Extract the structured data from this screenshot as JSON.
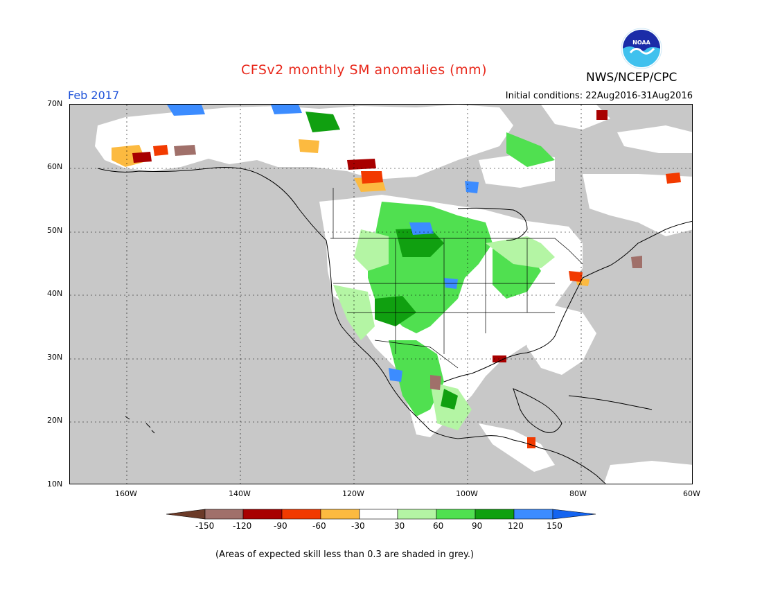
{
  "header": {
    "title": "CFSv2 monthly SM anomalies (mm)",
    "org": "NWS/NCEP/CPC",
    "month": "Feb 2017",
    "initial_conditions": "Initial conditions: 22Aug2016-31Aug2016",
    "logo_text": "NOAA"
  },
  "map": {
    "lat_labels": [
      "70N",
      "60N",
      "50N",
      "40N",
      "30N",
      "20N",
      "10N"
    ],
    "lon_labels": [
      "160W",
      "140W",
      "120W",
      "100W",
      "80W",
      "60W"
    ],
    "colors": {
      "background_grey": "#c8c8c8",
      "no_anomaly": "#ffffff"
    }
  },
  "legend": {
    "labels": [
      "-150",
      "-120",
      "-90",
      "-60",
      "-30",
      "30",
      "60",
      "90",
      "120",
      "150"
    ],
    "colors": [
      "#6b3a28",
      "#a0706a",
      "#a80000",
      "#f23a00",
      "#fcba40",
      "#ffffff",
      "#b4f5a4",
      "#50e050",
      "#10a010",
      "#3c8cff",
      "#1464f0"
    ]
  },
  "note": "(Areas of expected skill less than 0.3 are shaded in grey.)"
}
